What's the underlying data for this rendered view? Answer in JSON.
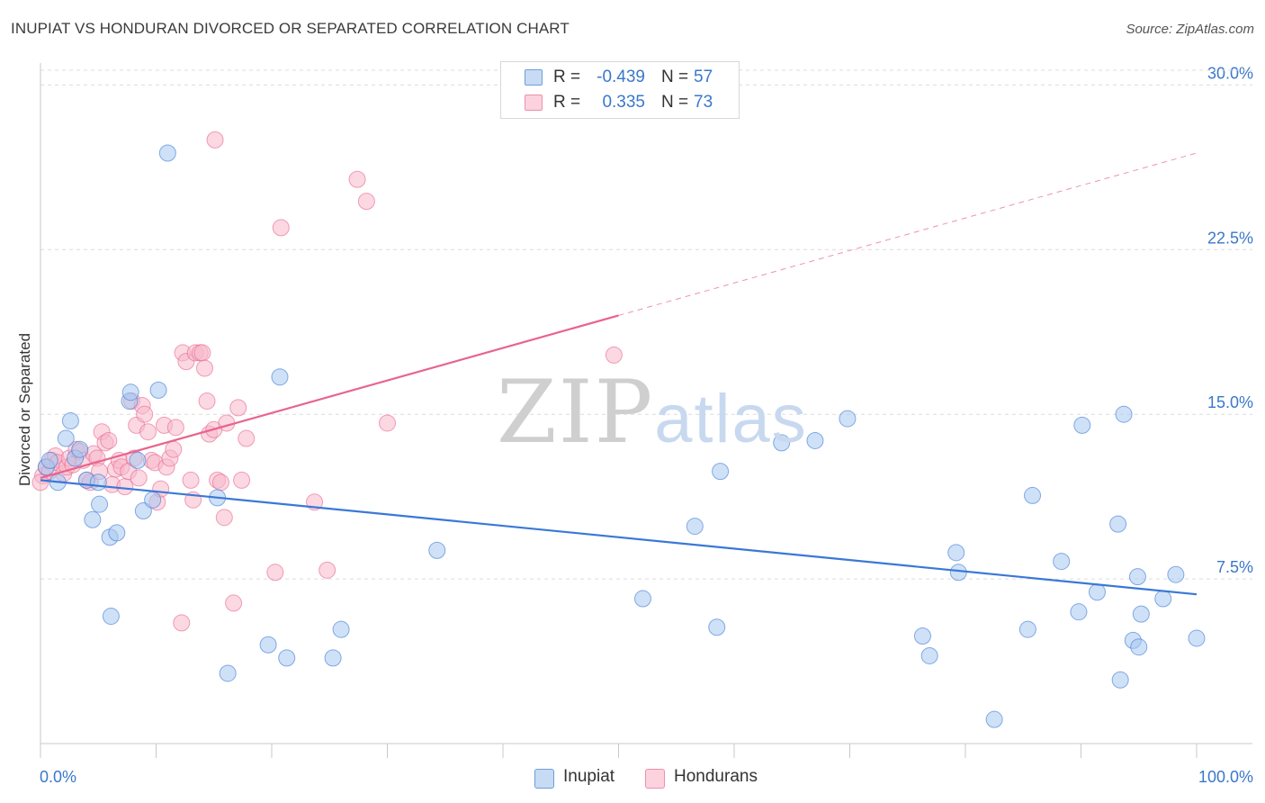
{
  "header": {
    "title": "INUPIAT VS HONDURAN DIVORCED OR SEPARATED CORRELATION CHART",
    "source": "Source: ZipAtlas.com"
  },
  "watermark": {
    "zip": "ZIP",
    "atlas": "atlas"
  },
  "legend": {
    "rows": [
      {
        "r_label": "R =",
        "r_value": "-0.439",
        "n_label": "N =",
        "n_value": "57",
        "color": "#a8c8f0"
      },
      {
        "r_label": "R =",
        "r_value": "0.335",
        "n_label": "N =",
        "n_value": "73",
        "color": "#f7b8cb"
      }
    ]
  },
  "bottom_legend": {
    "inupiat": "Inupiat",
    "hondurans": "Hondurans"
  },
  "chart_data": {
    "type": "scatter",
    "title": "INUPIAT VS HONDURAN DIVORCED OR SEPARATED CORRELATION CHART",
    "xlabel": "",
    "ylabel": "Divorced or Separated",
    "xlim": [
      0,
      100
    ],
    "ylim": [
      0,
      31
    ],
    "x_tick_labels": [
      "0.0%",
      "100.0%"
    ],
    "y_ticks": [
      7.5,
      15.0,
      22.5,
      30.0
    ],
    "y_tick_labels": [
      "7.5%",
      "15.0%",
      "22.5%",
      "30.0%"
    ],
    "grid": true,
    "series": [
      {
        "name": "Inupiat",
        "color": "#3a78d6",
        "fill": "#a8c8f0",
        "R": -0.439,
        "N": 57,
        "trend": {
          "x": [
            0,
            100
          ],
          "y": [
            12.0,
            6.8
          ],
          "dashed_to": null
        },
        "points": [
          [
            0.5,
            12.6
          ],
          [
            0.8,
            12.9
          ],
          [
            1.5,
            11.9
          ],
          [
            2.2,
            13.9
          ],
          [
            2.6,
            14.7
          ],
          [
            3.0,
            13.0
          ],
          [
            3.4,
            13.4
          ],
          [
            4.0,
            12.0
          ],
          [
            4.5,
            10.2
          ],
          [
            5.0,
            11.9
          ],
          [
            5.1,
            10.9
          ],
          [
            6.0,
            9.4
          ],
          [
            6.1,
            5.8
          ],
          [
            6.6,
            9.6
          ],
          [
            7.7,
            15.6
          ],
          [
            7.8,
            16.0
          ],
          [
            8.4,
            12.9
          ],
          [
            8.9,
            10.6
          ],
          [
            9.7,
            11.1
          ],
          [
            10.2,
            16.1
          ],
          [
            11.0,
            26.9
          ],
          [
            15.3,
            11.2
          ],
          [
            16.2,
            3.2
          ],
          [
            19.7,
            4.5
          ],
          [
            20.7,
            16.7
          ],
          [
            21.3,
            3.9
          ],
          [
            25.3,
            3.9
          ],
          [
            26.0,
            5.2
          ],
          [
            34.3,
            8.8
          ],
          [
            52.1,
            6.6
          ],
          [
            56.6,
            9.9
          ],
          [
            58.5,
            5.3
          ],
          [
            58.8,
            12.4
          ],
          [
            64.1,
            13.7
          ],
          [
            67.0,
            13.8
          ],
          [
            69.8,
            14.8
          ],
          [
            76.3,
            4.9
          ],
          [
            76.9,
            4.0
          ],
          [
            79.2,
            8.7
          ],
          [
            79.4,
            7.8
          ],
          [
            82.5,
            1.1
          ],
          [
            85.4,
            5.2
          ],
          [
            85.8,
            11.3
          ],
          [
            88.3,
            8.3
          ],
          [
            89.8,
            6.0
          ],
          [
            90.1,
            14.5
          ],
          [
            91.4,
            6.9
          ],
          [
            93.2,
            10.0
          ],
          [
            93.4,
            2.9
          ],
          [
            93.7,
            15.0
          ],
          [
            94.5,
            4.7
          ],
          [
            95.0,
            4.4
          ],
          [
            94.9,
            7.6
          ],
          [
            95.2,
            5.9
          ],
          [
            97.1,
            6.6
          ],
          [
            98.2,
            7.7
          ],
          [
            100.0,
            4.8
          ]
        ]
      },
      {
        "name": "Hondurans",
        "color": "#e8648e",
        "fill": "#f7b8cb",
        "R": 0.335,
        "N": 73,
        "trend": {
          "x": [
            0,
            50
          ],
          "y": [
            12.1,
            19.5
          ],
          "dashed_to": [
            100,
            26.9
          ]
        },
        "points": [
          [
            0.2,
            12.2
          ],
          [
            0.5,
            12.6
          ],
          [
            0.8,
            12.4
          ],
          [
            1.0,
            12.9
          ],
          [
            1.3,
            13.1
          ],
          [
            1.5,
            12.8
          ],
          [
            2.0,
            12.3
          ],
          [
            2.3,
            12.6
          ],
          [
            2.5,
            13.0
          ],
          [
            2.8,
            12.7
          ],
          [
            3.1,
            13.4
          ],
          [
            3.4,
            13.3
          ],
          [
            3.7,
            12.9
          ],
          [
            4.0,
            12.0
          ],
          [
            4.3,
            11.9
          ],
          [
            4.6,
            13.2
          ],
          [
            4.9,
            13.0
          ],
          [
            5.1,
            12.4
          ],
          [
            5.3,
            14.2
          ],
          [
            5.6,
            13.7
          ],
          [
            5.9,
            13.8
          ],
          [
            6.2,
            11.8
          ],
          [
            6.5,
            12.5
          ],
          [
            6.8,
            12.9
          ],
          [
            7.0,
            12.6
          ],
          [
            7.3,
            11.7
          ],
          [
            7.6,
            12.4
          ],
          [
            7.9,
            15.6
          ],
          [
            8.1,
            13.0
          ],
          [
            8.3,
            14.5
          ],
          [
            8.5,
            12.1
          ],
          [
            8.8,
            15.4
          ],
          [
            9.0,
            15.0
          ],
          [
            9.3,
            14.2
          ],
          [
            9.6,
            12.9
          ],
          [
            9.9,
            12.8
          ],
          [
            10.1,
            11.0
          ],
          [
            10.4,
            11.6
          ],
          [
            10.7,
            14.5
          ],
          [
            10.9,
            12.6
          ],
          [
            11.2,
            13.0
          ],
          [
            11.5,
            13.4
          ],
          [
            11.7,
            14.4
          ],
          [
            12.2,
            5.5
          ],
          [
            12.3,
            17.8
          ],
          [
            12.6,
            17.4
          ],
          [
            13.0,
            12.0
          ],
          [
            13.2,
            11.1
          ],
          [
            13.4,
            17.8
          ],
          [
            13.8,
            17.8
          ],
          [
            14.0,
            17.8
          ],
          [
            14.2,
            17.1
          ],
          [
            14.4,
            15.6
          ],
          [
            14.6,
            14.1
          ],
          [
            15.0,
            14.3
          ],
          [
            15.3,
            12.0
          ],
          [
            15.6,
            11.9
          ],
          [
            15.9,
            10.3
          ],
          [
            16.1,
            14.6
          ],
          [
            16.7,
            6.4
          ],
          [
            17.1,
            15.3
          ],
          [
            17.4,
            12.0
          ],
          [
            17.8,
            13.9
          ],
          [
            20.3,
            7.8
          ],
          [
            20.8,
            23.5
          ],
          [
            23.7,
            11.0
          ],
          [
            24.8,
            7.9
          ],
          [
            15.1,
            27.5
          ],
          [
            27.4,
            25.7
          ],
          [
            28.2,
            24.7
          ],
          [
            30.0,
            14.6
          ],
          [
            49.6,
            17.7
          ],
          [
            0.0,
            11.9
          ]
        ]
      }
    ]
  }
}
